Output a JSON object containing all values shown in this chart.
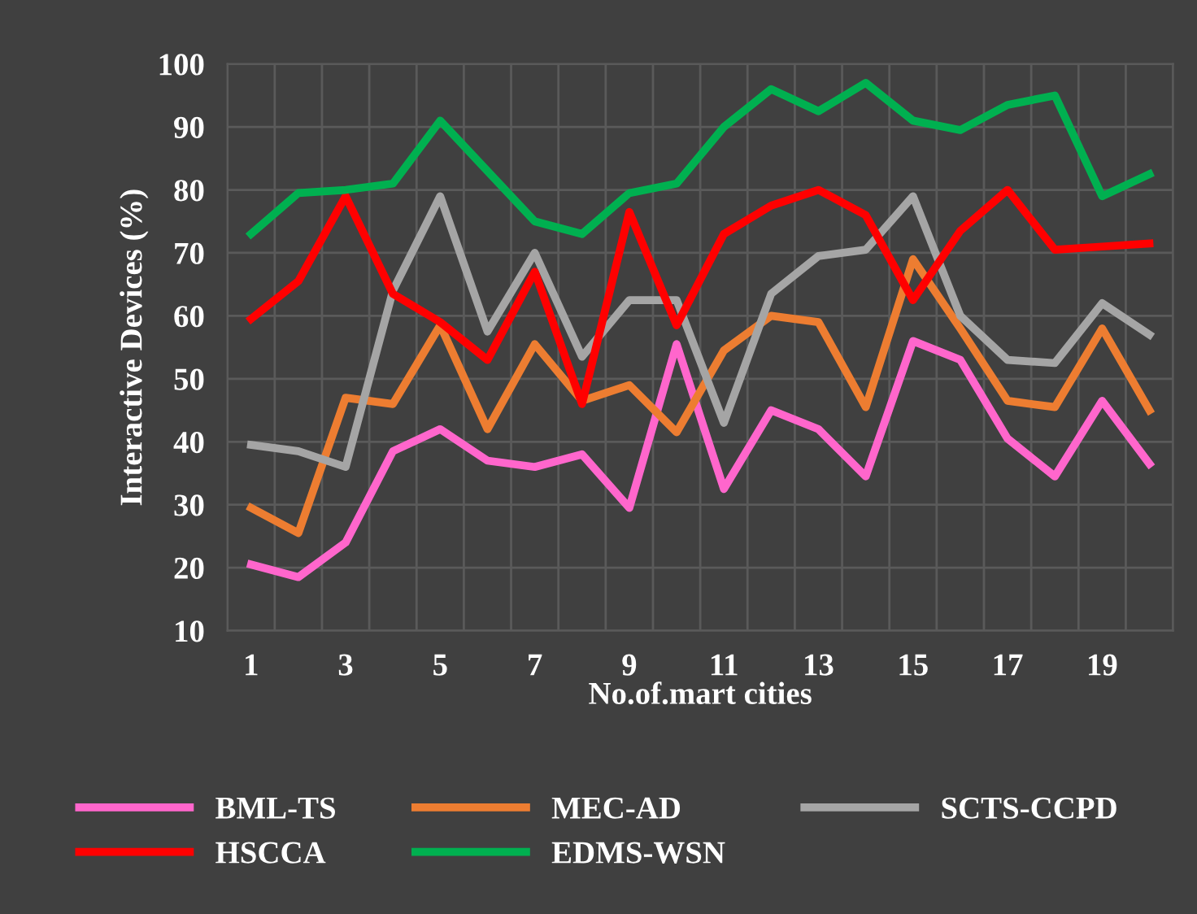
{
  "chart_data": {
    "type": "line",
    "xlabel": "No.of.mart cities",
    "ylabel": "Interactive Devices (%)",
    "x": [
      1,
      2,
      3,
      4,
      5,
      6,
      7,
      8,
      9,
      10,
      11,
      12,
      13,
      14,
      15,
      16,
      17,
      18,
      19,
      20
    ],
    "xlim": [
      0.5,
      20.5
    ],
    "xticks": [
      1,
      3,
      5,
      7,
      9,
      11,
      13,
      15,
      17,
      19
    ],
    "ylim": [
      10,
      100
    ],
    "yticks": [
      10,
      20,
      30,
      40,
      50,
      60,
      70,
      80,
      90,
      100
    ],
    "grid": true,
    "legend": "bottom",
    "marker": "none",
    "line_style": "solid",
    "series": [
      {
        "name": "BML-TS",
        "color": "#ff66cc",
        "values": [
          20.5,
          18.5,
          24,
          38.5,
          42,
          37,
          36,
          38,
          29.5,
          55.5,
          32.5,
          45,
          42,
          34.5,
          56,
          53,
          40.5,
          34.5,
          46.5,
          36.5
        ]
      },
      {
        "name": "MEC-AD",
        "color": "#ed7d31",
        "values": [
          29.5,
          25.5,
          47,
          46,
          58.5,
          42,
          55.5,
          46.5,
          49,
          41.5,
          54.5,
          60,
          59,
          45.5,
          69,
          58,
          46.5,
          45.5,
          58,
          45
        ]
      },
      {
        "name": "SCTS-CCPD",
        "color": "#a5a5a5",
        "values": [
          39.5,
          38.5,
          36,
          64,
          79,
          57.5,
          70,
          53.5,
          62.5,
          62.5,
          43,
          63.5,
          69.5,
          70.5,
          79,
          60,
          53,
          52.5,
          62,
          57
        ]
      },
      {
        "name": "HSCCA",
        "color": "#ff0000",
        "values": [
          59.5,
          65.5,
          79,
          63.5,
          59,
          53,
          67,
          46,
          76.5,
          58.5,
          73,
          77.5,
          80,
          76,
          62.5,
          73.5,
          80,
          70.5,
          71,
          71.5
        ]
      },
      {
        "name": "EDMS-WSN",
        "color": "#00b050",
        "values": [
          73,
          79.5,
          80,
          81,
          91,
          83,
          75,
          73,
          79.5,
          81,
          90,
          96,
          92.5,
          97,
          91,
          89.5,
          93.5,
          95,
          79,
          82.5
        ]
      }
    ]
  }
}
